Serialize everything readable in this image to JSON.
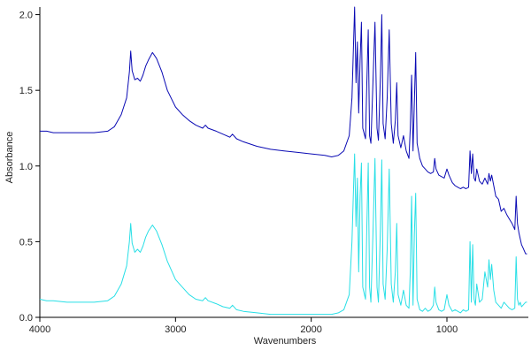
{
  "chart_data": {
    "type": "line",
    "title": "",
    "xlabel": "Wavenumbers",
    "ylabel": "Absorbance",
    "xlim": [
      4000,
      400
    ],
    "ylim": [
      0.0,
      2.05
    ],
    "x_reversed": true,
    "grid": false,
    "x_ticks": [
      {
        "value": 4000,
        "label": "4000"
      },
      {
        "value": 3000,
        "label": "3000"
      },
      {
        "value": 2000,
        "label": "2000"
      },
      {
        "value": 1000,
        "label": "1000"
      }
    ],
    "y_ticks": [
      {
        "value": 0.0,
        "label": "0.0"
      },
      {
        "value": 0.5,
        "label": "0.5"
      },
      {
        "value": 1.0,
        "label": "1.0"
      },
      {
        "value": 1.5,
        "label": "1.5"
      },
      {
        "value": 2.0,
        "label": "2.0"
      }
    ],
    "series": [
      {
        "color": "#0a0ab4",
        "points": [
          [
            4000,
            1.23
          ],
          [
            3950,
            1.23
          ],
          [
            3900,
            1.22
          ],
          [
            3800,
            1.22
          ],
          [
            3700,
            1.22
          ],
          [
            3600,
            1.22
          ],
          [
            3500,
            1.23
          ],
          [
            3450,
            1.26
          ],
          [
            3400,
            1.34
          ],
          [
            3360,
            1.45
          ],
          [
            3340,
            1.62
          ],
          [
            3330,
            1.76
          ],
          [
            3320,
            1.63
          ],
          [
            3300,
            1.57
          ],
          [
            3280,
            1.58
          ],
          [
            3260,
            1.56
          ],
          [
            3240,
            1.6
          ],
          [
            3220,
            1.66
          ],
          [
            3200,
            1.7
          ],
          [
            3170,
            1.75
          ],
          [
            3140,
            1.71
          ],
          [
            3100,
            1.62
          ],
          [
            3060,
            1.5
          ],
          [
            3000,
            1.39
          ],
          [
            2950,
            1.34
          ],
          [
            2900,
            1.3
          ],
          [
            2850,
            1.27
          ],
          [
            2800,
            1.25
          ],
          [
            2780,
            1.27
          ],
          [
            2760,
            1.25
          ],
          [
            2700,
            1.23
          ],
          [
            2650,
            1.21
          ],
          [
            2600,
            1.19
          ],
          [
            2580,
            1.21
          ],
          [
            2550,
            1.18
          ],
          [
            2500,
            1.16
          ],
          [
            2400,
            1.13
          ],
          [
            2300,
            1.11
          ],
          [
            2200,
            1.1
          ],
          [
            2100,
            1.09
          ],
          [
            2000,
            1.08
          ],
          [
            1900,
            1.07
          ],
          [
            1850,
            1.06
          ],
          [
            1800,
            1.07
          ],
          [
            1760,
            1.1
          ],
          [
            1720,
            1.2
          ],
          [
            1700,
            1.45
          ],
          [
            1690,
            1.75
          ],
          [
            1680,
            2.05
          ],
          [
            1670,
            1.55
          ],
          [
            1660,
            1.82
          ],
          [
            1650,
            1.35
          ],
          [
            1640,
            1.7
          ],
          [
            1630,
            1.95
          ],
          [
            1620,
            1.25
          ],
          [
            1600,
            1.18
          ],
          [
            1590,
            1.55
          ],
          [
            1580,
            1.9
          ],
          [
            1570,
            1.2
          ],
          [
            1560,
            1.15
          ],
          [
            1545,
            1.55
          ],
          [
            1530,
            1.95
          ],
          [
            1515,
            1.25
          ],
          [
            1505,
            1.17
          ],
          [
            1490,
            1.6
          ],
          [
            1480,
            2.0
          ],
          [
            1470,
            1.28
          ],
          [
            1455,
            1.18
          ],
          [
            1440,
            1.45
          ],
          [
            1425,
            1.9
          ],
          [
            1410,
            1.28
          ],
          [
            1395,
            1.15
          ],
          [
            1380,
            1.3
          ],
          [
            1370,
            1.55
          ],
          [
            1360,
            1.2
          ],
          [
            1340,
            1.12
          ],
          [
            1320,
            1.2
          ],
          [
            1300,
            1.1
          ],
          [
            1280,
            1.05
          ],
          [
            1270,
            1.25
          ],
          [
            1260,
            1.6
          ],
          [
            1250,
            1.1
          ],
          [
            1240,
            1.42
          ],
          [
            1230,
            1.75
          ],
          [
            1220,
            1.15
          ],
          [
            1200,
            1.05
          ],
          [
            1180,
            1.0
          ],
          [
            1160,
            0.98
          ],
          [
            1140,
            0.96
          ],
          [
            1120,
            0.95
          ],
          [
            1100,
            0.96
          ],
          [
            1090,
            1.05
          ],
          [
            1080,
            0.98
          ],
          [
            1060,
            0.94
          ],
          [
            1040,
            0.93
          ],
          [
            1020,
            0.92
          ],
          [
            1000,
            0.98
          ],
          [
            985,
            0.94
          ],
          [
            960,
            0.89
          ],
          [
            940,
            0.87
          ],
          [
            920,
            0.86
          ],
          [
            900,
            0.85
          ],
          [
            880,
            0.86
          ],
          [
            860,
            0.85
          ],
          [
            840,
            0.86
          ],
          [
            830,
            1.1
          ],
          [
            820,
            0.95
          ],
          [
            810,
            1.08
          ],
          [
            800,
            0.92
          ],
          [
            790,
            0.9
          ],
          [
            780,
            0.98
          ],
          [
            760,
            0.9
          ],
          [
            740,
            0.88
          ],
          [
            720,
            0.92
          ],
          [
            700,
            0.88
          ],
          [
            690,
            0.95
          ],
          [
            680,
            0.9
          ],
          [
            670,
            0.94
          ],
          [
            655,
            0.87
          ],
          [
            640,
            0.8
          ],
          [
            620,
            0.78
          ],
          [
            600,
            0.7
          ],
          [
            580,
            0.72
          ],
          [
            560,
            0.68
          ],
          [
            540,
            0.65
          ],
          [
            520,
            0.62
          ],
          [
            500,
            0.58
          ],
          [
            490,
            0.8
          ],
          [
            480,
            0.62
          ],
          [
            470,
            0.56
          ],
          [
            460,
            0.52
          ],
          [
            450,
            0.48
          ],
          [
            440,
            0.46
          ],
          [
            430,
            0.44
          ],
          [
            420,
            0.42
          ],
          [
            410,
            0.42
          ]
        ]
      },
      {
        "color": "#28dfe6",
        "points": [
          [
            4000,
            0.12
          ],
          [
            3950,
            0.11
          ],
          [
            3900,
            0.11
          ],
          [
            3800,
            0.1
          ],
          [
            3700,
            0.1
          ],
          [
            3600,
            0.1
          ],
          [
            3500,
            0.11
          ],
          [
            3450,
            0.14
          ],
          [
            3400,
            0.22
          ],
          [
            3360,
            0.34
          ],
          [
            3340,
            0.5
          ],
          [
            3330,
            0.62
          ],
          [
            3320,
            0.49
          ],
          [
            3300,
            0.43
          ],
          [
            3280,
            0.45
          ],
          [
            3260,
            0.43
          ],
          [
            3240,
            0.47
          ],
          [
            3220,
            0.53
          ],
          [
            3200,
            0.57
          ],
          [
            3170,
            0.61
          ],
          [
            3140,
            0.57
          ],
          [
            3100,
            0.48
          ],
          [
            3060,
            0.37
          ],
          [
            3000,
            0.25
          ],
          [
            2950,
            0.2
          ],
          [
            2900,
            0.15
          ],
          [
            2850,
            0.12
          ],
          [
            2800,
            0.11
          ],
          [
            2780,
            0.13
          ],
          [
            2760,
            0.11
          ],
          [
            2700,
            0.09
          ],
          [
            2650,
            0.07
          ],
          [
            2600,
            0.06
          ],
          [
            2580,
            0.08
          ],
          [
            2550,
            0.05
          ],
          [
            2500,
            0.04
          ],
          [
            2400,
            0.03
          ],
          [
            2300,
            0.02
          ],
          [
            2200,
            0.02
          ],
          [
            2100,
            0.02
          ],
          [
            2000,
            0.02
          ],
          [
            1900,
            0.02
          ],
          [
            1850,
            0.02
          ],
          [
            1800,
            0.03
          ],
          [
            1760,
            0.05
          ],
          [
            1720,
            0.15
          ],
          [
            1700,
            0.5
          ],
          [
            1690,
            0.8
          ],
          [
            1680,
            1.08
          ],
          [
            1670,
            0.6
          ],
          [
            1660,
            0.92
          ],
          [
            1650,
            0.3
          ],
          [
            1640,
            0.8
          ],
          [
            1630,
            1.02
          ],
          [
            1620,
            0.2
          ],
          [
            1600,
            0.12
          ],
          [
            1590,
            0.6
          ],
          [
            1580,
            1.02
          ],
          [
            1570,
            0.2
          ],
          [
            1560,
            0.1
          ],
          [
            1545,
            0.55
          ],
          [
            1530,
            1.05
          ],
          [
            1515,
            0.2
          ],
          [
            1505,
            0.1
          ],
          [
            1490,
            0.6
          ],
          [
            1480,
            1.04
          ],
          [
            1470,
            0.22
          ],
          [
            1455,
            0.12
          ],
          [
            1440,
            0.45
          ],
          [
            1425,
            0.98
          ],
          [
            1410,
            0.22
          ],
          [
            1395,
            0.1
          ],
          [
            1380,
            0.3
          ],
          [
            1370,
            0.62
          ],
          [
            1360,
            0.15
          ],
          [
            1340,
            0.08
          ],
          [
            1320,
            0.18
          ],
          [
            1300,
            0.08
          ],
          [
            1280,
            0.06
          ],
          [
            1270,
            0.3
          ],
          [
            1260,
            0.8
          ],
          [
            1250,
            0.08
          ],
          [
            1240,
            0.55
          ],
          [
            1230,
            0.82
          ],
          [
            1220,
            0.12
          ],
          [
            1200,
            0.05
          ],
          [
            1180,
            0.04
          ],
          [
            1160,
            0.06
          ],
          [
            1140,
            0.04
          ],
          [
            1120,
            0.05
          ],
          [
            1100,
            0.08
          ],
          [
            1090,
            0.2
          ],
          [
            1080,
            0.1
          ],
          [
            1060,
            0.05
          ],
          [
            1040,
            0.04
          ],
          [
            1020,
            0.05
          ],
          [
            1000,
            0.15
          ],
          [
            985,
            0.08
          ],
          [
            960,
            0.04
          ],
          [
            940,
            0.05
          ],
          [
            920,
            0.04
          ],
          [
            900,
            0.03
          ],
          [
            880,
            0.05
          ],
          [
            860,
            0.04
          ],
          [
            840,
            0.05
          ],
          [
            830,
            0.5
          ],
          [
            820,
            0.1
          ],
          [
            810,
            0.48
          ],
          [
            800,
            0.12
          ],
          [
            790,
            0.08
          ],
          [
            780,
            0.22
          ],
          [
            760,
            0.1
          ],
          [
            740,
            0.12
          ],
          [
            720,
            0.3
          ],
          [
            700,
            0.2
          ],
          [
            690,
            0.38
          ],
          [
            680,
            0.25
          ],
          [
            670,
            0.35
          ],
          [
            655,
            0.18
          ],
          [
            640,
            0.1
          ],
          [
            620,
            0.08
          ],
          [
            600,
            0.06
          ],
          [
            580,
            0.1
          ],
          [
            560,
            0.08
          ],
          [
            540,
            0.06
          ],
          [
            520,
            0.05
          ],
          [
            500,
            0.06
          ],
          [
            490,
            0.4
          ],
          [
            480,
            0.12
          ],
          [
            470,
            0.08
          ],
          [
            460,
            0.1
          ],
          [
            450,
            0.07
          ],
          [
            440,
            0.08
          ],
          [
            430,
            0.09
          ],
          [
            420,
            0.1
          ],
          [
            410,
            0.1
          ]
        ]
      }
    ]
  }
}
